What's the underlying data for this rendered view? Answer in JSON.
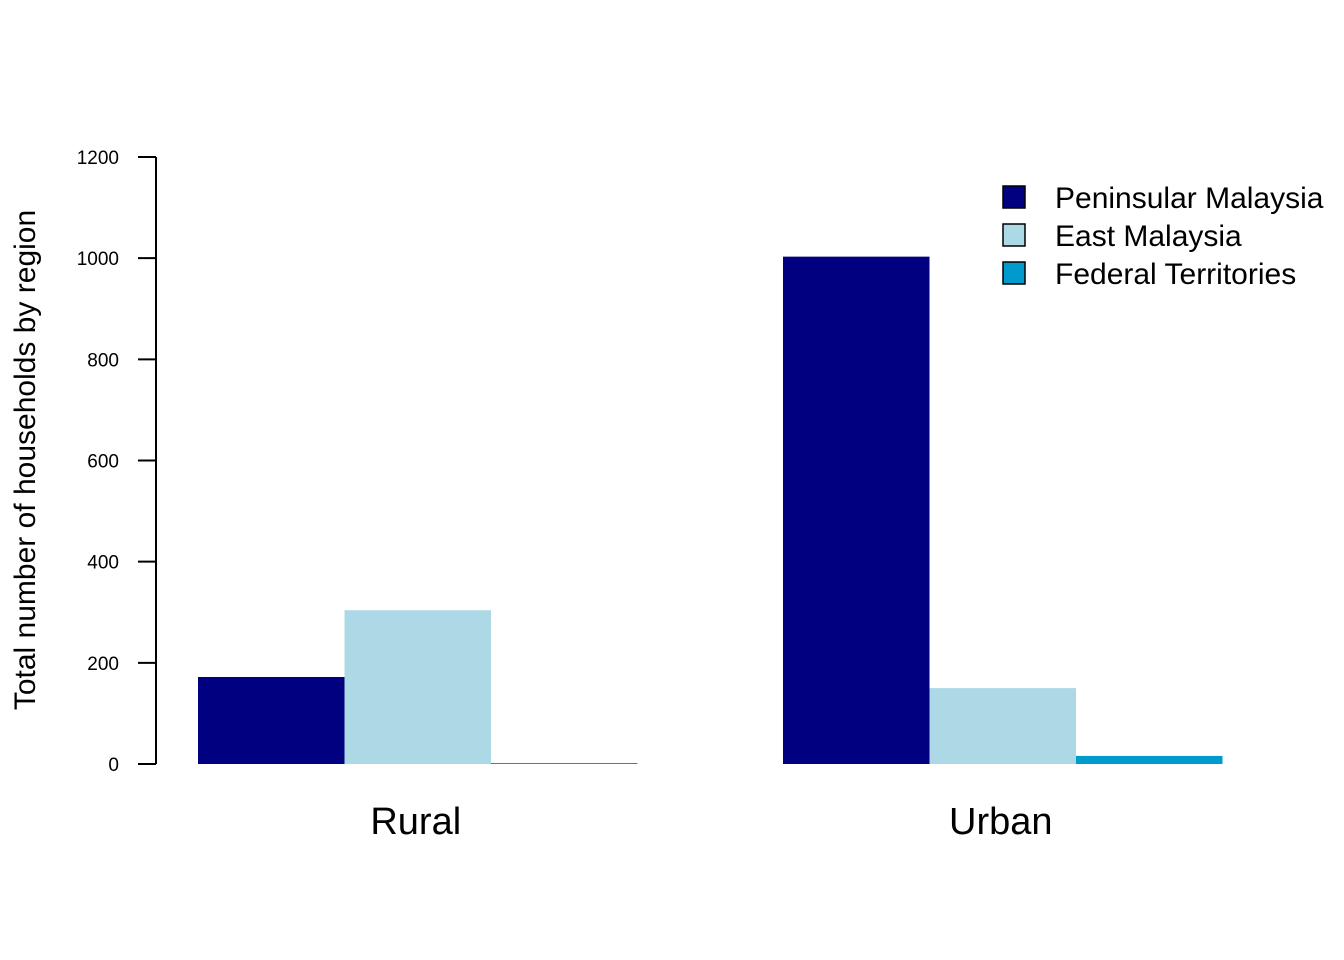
{
  "chart_data": {
    "type": "bar",
    "categories": [
      "Rural",
      "Urban"
    ],
    "series": [
      {
        "name": "Peninsular Malaysia",
        "values": [
          172,
          1003
        ],
        "color": "#000080"
      },
      {
        "name": "East Malaysia",
        "values": [
          304,
          150
        ],
        "color": "#ADD8E6"
      },
      {
        "name": "Federal Territories",
        "values": [
          2,
          16
        ],
        "color": "#009ACD"
      }
    ],
    "title": "",
    "xlabel": "",
    "ylabel": "Total number of households by region",
    "ylim": [
      0,
      1200
    ],
    "yticks": [
      0,
      200,
      400,
      600,
      800,
      1000,
      1200
    ],
    "grid": false,
    "legend_position": "top-right"
  }
}
